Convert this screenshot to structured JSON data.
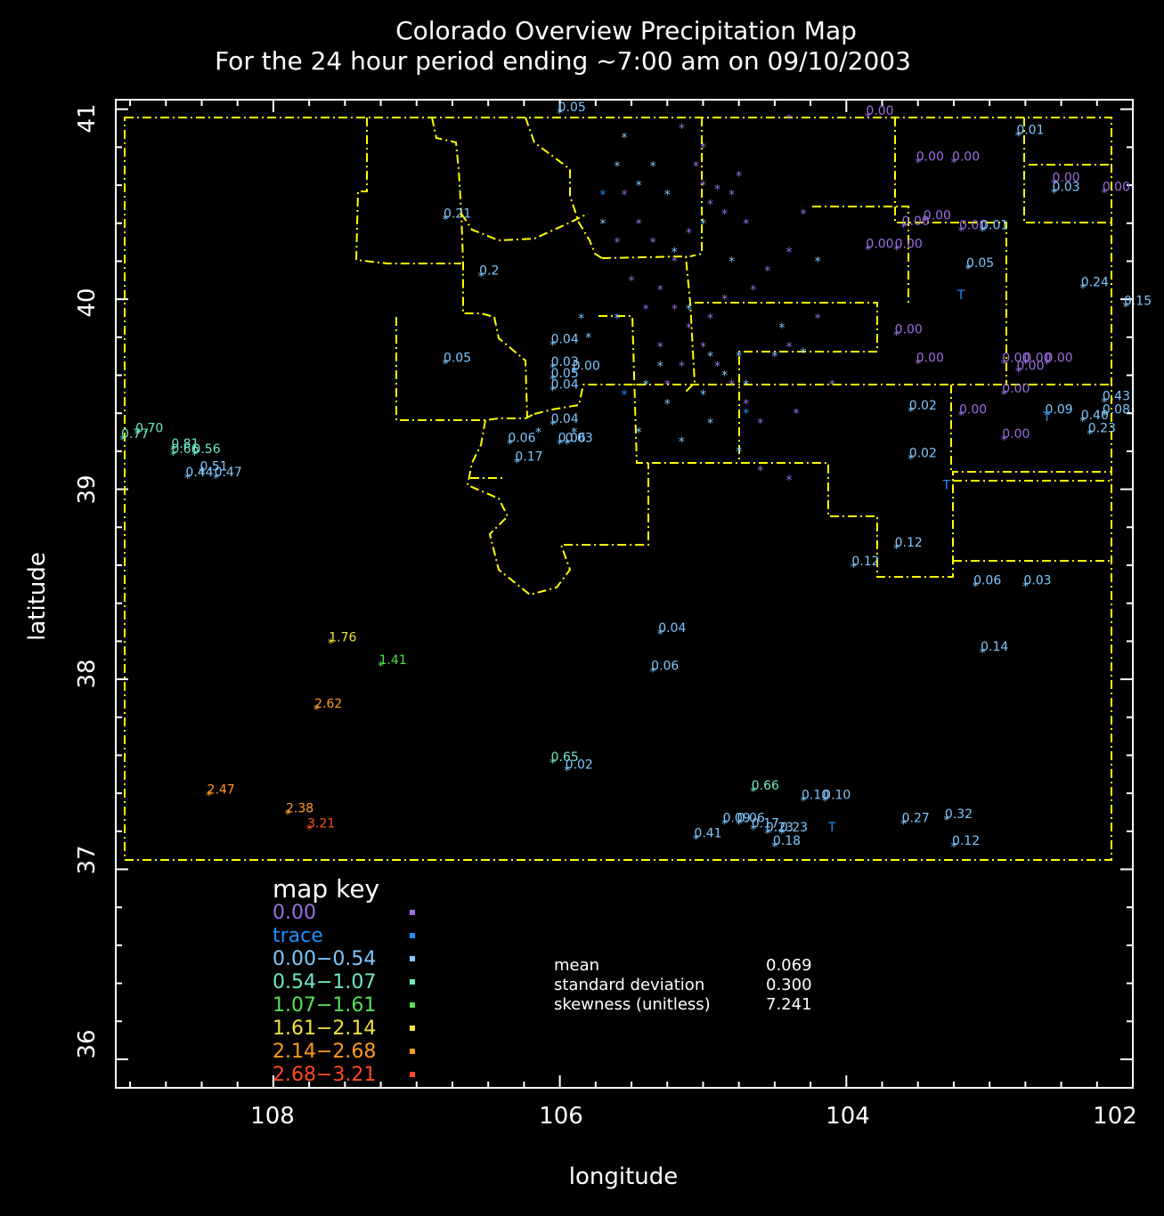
{
  "title": {
    "line1": "Colorado Overview Precipitation Map",
    "line2": "For the 24 hour period ending ~7:00 am on 09/10/2003"
  },
  "axes": {
    "xlabel": "longitude",
    "ylabel": "latitude",
    "x_ticks": [
      "108",
      "106",
      "104",
      "102"
    ],
    "y_ticks": [
      "41",
      "40",
      "39",
      "38",
      "37",
      "36"
    ]
  },
  "colors": {
    "zero": "#9a6fe0",
    "trace": "#1e90ff",
    "bin1": "#7fc7ff",
    "bin2": "#6ee8c8",
    "bin3": "#55e055",
    "bin4": "#f0e040",
    "bin5": "#ff9a20",
    "bin6": "#ff4a20",
    "boundary": "#ffff00"
  },
  "map_key": {
    "title": "map key",
    "items": [
      {
        "label": "0.00",
        "color": "zero"
      },
      {
        "label": "trace",
        "color": "trace"
      },
      {
        "label": "0.00−0.54",
        "color": "bin1"
      },
      {
        "label": "0.54−1.07",
        "color": "bin2"
      },
      {
        "label": "1.07−1.61",
        "color": "bin3"
      },
      {
        "label": "1.61−2.14",
        "color": "bin4"
      },
      {
        "label": "2.14−2.68",
        "color": "bin5"
      },
      {
        "label": "2.68−3.21",
        "color": "bin6"
      }
    ]
  },
  "stats": {
    "mean_label": "mean",
    "mean_value": "0.069",
    "sd_label": "standard deviation",
    "sd_value": "0.300",
    "skew_label": "skewness (unitless)",
    "skew_value": "7.241"
  },
  "chart_data": {
    "type": "scatter",
    "xlim": [
      109.1,
      102.0
    ],
    "ylim": [
      35.85,
      41.05
    ],
    "observations": [
      {
        "lon": 106.0,
        "lat": 40.98,
        "label": "0.05",
        "color": "bin1"
      },
      {
        "lon": 103.85,
        "lat": 40.96,
        "label": "0.00",
        "color": "zero"
      },
      {
        "lon": 102.8,
        "lat": 40.86,
        "label": "0.01",
        "color": "bin1"
      },
      {
        "lon": 103.5,
        "lat": 40.72,
        "label": "0.00",
        "color": "zero"
      },
      {
        "lon": 103.25,
        "lat": 40.72,
        "label": "0.00",
        "color": "zero"
      },
      {
        "lon": 102.55,
        "lat": 40.61,
        "label": "0.00",
        "color": "zero"
      },
      {
        "lon": 102.55,
        "lat": 40.56,
        "label": "0.03",
        "color": "bin1"
      },
      {
        "lon": 102.2,
        "lat": 40.56,
        "label": "0.00",
        "color": "zero"
      },
      {
        "lon": 106.8,
        "lat": 40.42,
        "label": "0.21",
        "color": "bin1"
      },
      {
        "lon": 103.6,
        "lat": 40.38,
        "label": "0.00",
        "color": "zero"
      },
      {
        "lon": 103.45,
        "lat": 40.41,
        "label": "0.00",
        "color": "zero"
      },
      {
        "lon": 103.2,
        "lat": 40.36,
        "label": "0.00",
        "color": "zero"
      },
      {
        "lon": 103.05,
        "lat": 40.36,
        "label": "0.01",
        "color": "bin1"
      },
      {
        "lon": 103.85,
        "lat": 40.26,
        "label": "0.00",
        "color": "zero"
      },
      {
        "lon": 103.65,
        "lat": 40.26,
        "label": "0.00",
        "color": "zero"
      },
      {
        "lon": 106.55,
        "lat": 40.12,
        "label": "0.2",
        "color": "bin1"
      },
      {
        "lon": 103.15,
        "lat": 40.16,
        "label": "0.05",
        "color": "bin1"
      },
      {
        "lon": 102.35,
        "lat": 40.06,
        "label": "0.24",
        "color": "bin1"
      },
      {
        "lon": 102.05,
        "lat": 39.96,
        "label": "0.15",
        "color": "bin1"
      },
      {
        "lon": 103.65,
        "lat": 39.81,
        "label": "0.00",
        "color": "zero"
      },
      {
        "lon": 106.05,
        "lat": 39.76,
        "label": "0.04",
        "color": "bin1"
      },
      {
        "lon": 106.8,
        "lat": 39.66,
        "label": "0.05",
        "color": "bin1"
      },
      {
        "lon": 106.05,
        "lat": 39.64,
        "label": "0.03",
        "color": "bin1"
      },
      {
        "lon": 105.9,
        "lat": 39.62,
        "label": "0.00",
        "color": "bin1"
      },
      {
        "lon": 106.05,
        "lat": 39.58,
        "label": "0.05",
        "color": "bin1"
      },
      {
        "lon": 106.05,
        "lat": 39.52,
        "label": "0.04",
        "color": "bin1"
      },
      {
        "lon": 103.5,
        "lat": 39.66,
        "label": "0.00",
        "color": "zero"
      },
      {
        "lon": 102.9,
        "lat": 39.66,
        "label": "0.00",
        "color": "zero"
      },
      {
        "lon": 102.75,
        "lat": 39.66,
        "label": "0.00",
        "color": "zero"
      },
      {
        "lon": 102.6,
        "lat": 39.66,
        "label": "0.00",
        "color": "zero"
      },
      {
        "lon": 102.8,
        "lat": 39.62,
        "label": "0.00",
        "color": "zero"
      },
      {
        "lon": 102.9,
        "lat": 39.5,
        "label": "0.00",
        "color": "zero"
      },
      {
        "lon": 103.55,
        "lat": 39.41,
        "label": "0.02",
        "color": "bin1"
      },
      {
        "lon": 103.2,
        "lat": 39.39,
        "label": "0.00",
        "color": "zero"
      },
      {
        "lon": 106.05,
        "lat": 39.34,
        "label": "0.04",
        "color": "bin1"
      },
      {
        "lon": 106.35,
        "lat": 39.24,
        "label": "0.06",
        "color": "bin1"
      },
      {
        "lon": 106.0,
        "lat": 39.24,
        "label": "0.06",
        "color": "bin1"
      },
      {
        "lon": 105.95,
        "lat": 39.24,
        "label": "0.03",
        "color": "bin1"
      },
      {
        "lon": 106.3,
        "lat": 39.14,
        "label": "0.17",
        "color": "bin1"
      },
      {
        "lon": 103.55,
        "lat": 39.16,
        "label": "0.02",
        "color": "bin1"
      },
      {
        "lon": 102.9,
        "lat": 39.26,
        "label": "0.00",
        "color": "zero"
      },
      {
        "lon": 102.6,
        "lat": 39.39,
        "label": "0.09",
        "color": "bin1"
      },
      {
        "lon": 102.35,
        "lat": 39.36,
        "label": "0.40",
        "color": "bin1"
      },
      {
        "lon": 102.2,
        "lat": 39.39,
        "label": "0.08",
        "color": "bin1"
      },
      {
        "lon": 102.2,
        "lat": 39.46,
        "label": "0.43",
        "color": "bin1"
      },
      {
        "lon": 102.3,
        "lat": 39.29,
        "label": "0.23",
        "color": "bin1"
      },
      {
        "lon": 108.95,
        "lat": 39.29,
        "label": "0.70",
        "color": "bin2"
      },
      {
        "lon": 109.05,
        "lat": 39.26,
        "label": "0.77",
        "color": "bin2"
      },
      {
        "lon": 108.7,
        "lat": 39.21,
        "label": "0.81",
        "color": "bin2"
      },
      {
        "lon": 108.7,
        "lat": 39.18,
        "label": "0.66",
        "color": "bin2"
      },
      {
        "lon": 108.55,
        "lat": 39.18,
        "label": "0.56",
        "color": "bin2"
      },
      {
        "lon": 108.6,
        "lat": 39.06,
        "label": "0.44",
        "color": "bin1"
      },
      {
        "lon": 108.5,
        "lat": 39.09,
        "label": "0.51",
        "color": "bin1"
      },
      {
        "lon": 108.4,
        "lat": 39.06,
        "label": "0.47",
        "color": "bin1"
      },
      {
        "lon": 103.65,
        "lat": 38.69,
        "label": "0.12",
        "color": "bin1"
      },
      {
        "lon": 103.95,
        "lat": 38.59,
        "label": "0.12",
        "color": "bin1"
      },
      {
        "lon": 103.1,
        "lat": 38.49,
        "label": "0.06",
        "color": "bin1"
      },
      {
        "lon": 102.75,
        "lat": 38.49,
        "label": "0.03",
        "color": "bin1"
      },
      {
        "lon": 105.3,
        "lat": 38.24,
        "label": "0.04",
        "color": "bin1"
      },
      {
        "lon": 103.05,
        "lat": 38.14,
        "label": "0.14",
        "color": "bin1"
      },
      {
        "lon": 105.35,
        "lat": 38.04,
        "label": "0.06",
        "color": "bin1"
      },
      {
        "lon": 107.6,
        "lat": 38.19,
        "label": "1.76",
        "color": "bin4"
      },
      {
        "lon": 107.25,
        "lat": 38.07,
        "label": "1.41",
        "color": "bin3"
      },
      {
        "lon": 107.7,
        "lat": 37.84,
        "label": "2.62",
        "color": "bin5"
      },
      {
        "lon": 106.05,
        "lat": 37.56,
        "label": "0.65",
        "color": "bin2"
      },
      {
        "lon": 105.95,
        "lat": 37.52,
        "label": "0.02",
        "color": "bin1"
      },
      {
        "lon": 104.65,
        "lat": 37.41,
        "label": "0.66",
        "color": "bin2"
      },
      {
        "lon": 104.3,
        "lat": 37.36,
        "label": "0.10",
        "color": "bin1"
      },
      {
        "lon": 104.15,
        "lat": 37.36,
        "label": "0.10",
        "color": "bin1"
      },
      {
        "lon": 108.45,
        "lat": 37.39,
        "label": "2.47",
        "color": "bin5"
      },
      {
        "lon": 107.9,
        "lat": 37.29,
        "label": "2.38",
        "color": "bin5"
      },
      {
        "lon": 107.75,
        "lat": 37.21,
        "label": "3.21",
        "color": "bin6"
      },
      {
        "lon": 104.85,
        "lat": 37.24,
        "label": "0.09",
        "color": "bin1"
      },
      {
        "lon": 104.75,
        "lat": 37.24,
        "label": "0.06",
        "color": "bin1"
      },
      {
        "lon": 104.65,
        "lat": 37.21,
        "label": "0.17",
        "color": "bin1"
      },
      {
        "lon": 104.55,
        "lat": 37.19,
        "label": "0.23",
        "color": "bin1"
      },
      {
        "lon": 104.45,
        "lat": 37.19,
        "label": "0.23",
        "color": "bin1"
      },
      {
        "lon": 104.5,
        "lat": 37.12,
        "label": "0.18",
        "color": "bin1"
      },
      {
        "lon": 105.05,
        "lat": 37.16,
        "label": "0.41",
        "color": "bin1"
      },
      {
        "lon": 103.6,
        "lat": 37.24,
        "label": "0.27",
        "color": "bin1"
      },
      {
        "lon": 103.3,
        "lat": 37.26,
        "label": "0.32",
        "color": "bin1"
      },
      {
        "lon": 103.25,
        "lat": 37.12,
        "label": "0.12",
        "color": "bin1"
      }
    ],
    "trace_marks": [
      {
        "lon": 103.2,
        "lat": 40.0,
        "label": "T"
      },
      {
        "lon": 103.3,
        "lat": 39.0,
        "label": "T"
      },
      {
        "lon": 102.6,
        "lat": 39.36,
        "label": "T"
      },
      {
        "lon": 104.1,
        "lat": 37.2,
        "label": "T"
      }
    ],
    "unlabeled_points": [
      {
        "lon": 105.0,
        "lat": 40.6,
        "color": "zero"
      },
      {
        "lon": 104.95,
        "lat": 40.5,
        "color": "zero"
      },
      {
        "lon": 104.85,
        "lat": 40.45,
        "color": "zero"
      },
      {
        "lon": 104.9,
        "lat": 40.58,
        "color": "zero"
      },
      {
        "lon": 104.8,
        "lat": 40.55,
        "color": "zero"
      },
      {
        "lon": 104.75,
        "lat": 40.65,
        "color": "zero"
      },
      {
        "lon": 105.05,
        "lat": 40.7,
        "color": "zero"
      },
      {
        "lon": 104.7,
        "lat": 40.4,
        "color": "zero"
      },
      {
        "lon": 105.1,
        "lat": 40.35,
        "color": "zero"
      },
      {
        "lon": 105.2,
        "lat": 40.2,
        "color": "zero"
      },
      {
        "lon": 105.35,
        "lat": 40.3,
        "color": "zero"
      },
      {
        "lon": 105.45,
        "lat": 40.4,
        "color": "zero"
      },
      {
        "lon": 105.55,
        "lat": 40.55,
        "color": "zero"
      },
      {
        "lon": 105.6,
        "lat": 40.3,
        "color": "zero"
      },
      {
        "lon": 105.5,
        "lat": 40.1,
        "color": "zero"
      },
      {
        "lon": 105.3,
        "lat": 40.05,
        "color": "zero"
      },
      {
        "lon": 105.2,
        "lat": 39.95,
        "color": "zero"
      },
      {
        "lon": 105.1,
        "lat": 39.85,
        "color": "zero"
      },
      {
        "lon": 105.0,
        "lat": 39.75,
        "color": "zero"
      },
      {
        "lon": 104.9,
        "lat": 39.65,
        "color": "zero"
      },
      {
        "lon": 104.8,
        "lat": 39.55,
        "color": "zero"
      },
      {
        "lon": 104.7,
        "lat": 39.45,
        "color": "zero"
      },
      {
        "lon": 104.6,
        "lat": 39.35,
        "color": "zero"
      },
      {
        "lon": 104.95,
        "lat": 39.9,
        "color": "zero"
      },
      {
        "lon": 104.85,
        "lat": 40.0,
        "color": "zero"
      },
      {
        "lon": 104.65,
        "lat": 40.05,
        "color": "zero"
      },
      {
        "lon": 104.55,
        "lat": 40.15,
        "color": "zero"
      },
      {
        "lon": 104.4,
        "lat": 40.25,
        "color": "zero"
      },
      {
        "lon": 104.3,
        "lat": 40.45,
        "color": "zero"
      },
      {
        "lon": 104.2,
        "lat": 39.9,
        "color": "zero"
      },
      {
        "lon": 104.4,
        "lat": 39.75,
        "color": "zero"
      },
      {
        "lon": 104.1,
        "lat": 39.55,
        "color": "zero"
      },
      {
        "lon": 104.35,
        "lat": 39.4,
        "color": "zero"
      },
      {
        "lon": 105.15,
        "lat": 39.65,
        "color": "zero"
      },
      {
        "lon": 105.25,
        "lat": 39.55,
        "color": "zero"
      },
      {
        "lon": 105.3,
        "lat": 39.75,
        "color": "zero"
      },
      {
        "lon": 105.0,
        "lat": 40.8,
        "color": "zero"
      },
      {
        "lon": 105.15,
        "lat": 40.9,
        "color": "zero"
      },
      {
        "lon": 104.4,
        "lat": 40.95,
        "color": "zero"
      },
      {
        "lon": 104.6,
        "lat": 39.1,
        "color": "zero"
      },
      {
        "lon": 104.4,
        "lat": 39.05,
        "color": "zero"
      },
      {
        "lon": 105.4,
        "lat": 39.95,
        "color": "zero"
      },
      {
        "lon": 105.55,
        "lat": 40.85,
        "color": "bin1"
      },
      {
        "lon": 105.35,
        "lat": 40.7,
        "color": "bin1"
      },
      {
        "lon": 105.45,
        "lat": 40.6,
        "color": "bin1"
      },
      {
        "lon": 105.7,
        "lat": 40.55,
        "color": "trace"
      },
      {
        "lon": 105.25,
        "lat": 40.55,
        "color": "bin1"
      },
      {
        "lon": 105.2,
        "lat": 40.25,
        "color": "bin1"
      },
      {
        "lon": 105.1,
        "lat": 39.95,
        "color": "bin1"
      },
      {
        "lon": 104.95,
        "lat": 39.7,
        "color": "bin1"
      },
      {
        "lon": 105.3,
        "lat": 39.65,
        "color": "bin1"
      },
      {
        "lon": 105.4,
        "lat": 39.55,
        "color": "bin1"
      },
      {
        "lon": 105.25,
        "lat": 39.45,
        "color": "bin1"
      },
      {
        "lon": 105.0,
        "lat": 39.5,
        "color": "bin1"
      },
      {
        "lon": 104.85,
        "lat": 39.6,
        "color": "bin1"
      },
      {
        "lon": 104.75,
        "lat": 39.7,
        "color": "bin1"
      },
      {
        "lon": 104.7,
        "lat": 39.55,
        "color": "bin1"
      },
      {
        "lon": 104.95,
        "lat": 39.35,
        "color": "bin1"
      },
      {
        "lon": 105.15,
        "lat": 39.25,
        "color": "bin1"
      },
      {
        "lon": 104.75,
        "lat": 39.2,
        "color": "bin1"
      },
      {
        "lon": 105.8,
        "lat": 39.8,
        "color": "bin1"
      },
      {
        "lon": 105.85,
        "lat": 39.9,
        "color": "bin1"
      },
      {
        "lon": 105.6,
        "lat": 39.9,
        "color": "bin1"
      },
      {
        "lon": 104.5,
        "lat": 39.7,
        "color": "bin1"
      },
      {
        "lon": 104.3,
        "lat": 39.72,
        "color": "bin1"
      },
      {
        "lon": 104.45,
        "lat": 39.85,
        "color": "bin1"
      },
      {
        "lon": 105.45,
        "lat": 39.3,
        "color": "bin1"
      },
      {
        "lon": 105.9,
        "lat": 39.3,
        "color": "bin1"
      },
      {
        "lon": 106.15,
        "lat": 39.3,
        "color": "bin1"
      },
      {
        "lon": 105.7,
        "lat": 40.4,
        "color": "bin1"
      },
      {
        "lon": 104.7,
        "lat": 39.4,
        "color": "trace"
      },
      {
        "lon": 105.55,
        "lat": 39.5,
        "color": "trace"
      },
      {
        "lon": 105.0,
        "lat": 40.4,
        "color": "bin1"
      },
      {
        "lon": 104.8,
        "lat": 40.2,
        "color": "bin1"
      },
      {
        "lon": 104.2,
        "lat": 40.2,
        "color": "bin1"
      },
      {
        "lon": 105.6,
        "lat": 40.7,
        "color": "bin1"
      }
    ]
  }
}
